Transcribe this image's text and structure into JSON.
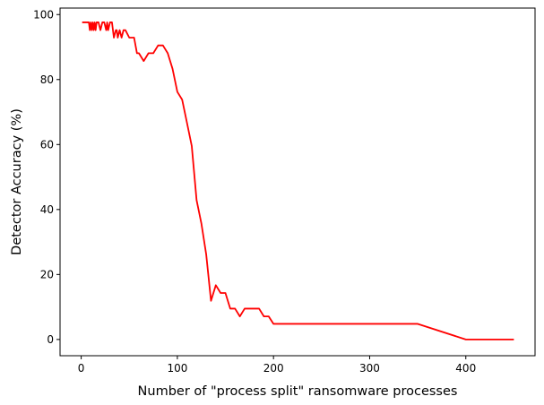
{
  "chart_data": {
    "type": "line",
    "title": "",
    "xlabel": "Number of \"process split\" ransomware processes",
    "ylabel": "Detector Accuracy (%)",
    "xlim": [
      -22,
      472
    ],
    "ylim": [
      -5,
      102
    ],
    "x_ticks": [
      0,
      100,
      200,
      300,
      400
    ],
    "y_ticks": [
      0,
      20,
      40,
      60,
      80,
      100
    ],
    "grid": false,
    "legend": "none",
    "series": [
      {
        "color": "#ff0000",
        "x": [
          1,
          8,
          9,
          10,
          11,
          12,
          13,
          14,
          15,
          16,
          17,
          18,
          20,
          22,
          24,
          26,
          27,
          28,
          30,
          32,
          34,
          36,
          37,
          38,
          40,
          42,
          44,
          46,
          50,
          55,
          58,
          60,
          65,
          70,
          75,
          80,
          85,
          90,
          95,
          100,
          105,
          110,
          115,
          120,
          125,
          130,
          135,
          140,
          145,
          150,
          155,
          160,
          165,
          170,
          175,
          180,
          185,
          190,
          195,
          200,
          205,
          210,
          250,
          300,
          350,
          400,
          450
        ],
        "y": [
          97.6,
          97.6,
          95.2,
          97.6,
          95.2,
          97.6,
          95.2,
          97.6,
          95.2,
          97.6,
          97.6,
          97.6,
          95.2,
          97.6,
          97.6,
          95.2,
          97.6,
          95.2,
          97.6,
          97.6,
          92.9,
          95.2,
          95.2,
          92.9,
          95.2,
          92.9,
          95.2,
          95.2,
          92.9,
          92.9,
          88.1,
          88.1,
          85.7,
          88.1,
          88.1,
          90.5,
          90.5,
          88.1,
          83.3,
          76.2,
          73.8,
          66.7,
          59.5,
          42.9,
          35.7,
          26.2,
          11.9,
          16.7,
          14.3,
          14.3,
          9.5,
          9.5,
          7.1,
          9.5,
          9.5,
          9.5,
          9.5,
          7.1,
          7.1,
          4.8,
          4.8,
          4.8,
          4.8,
          4.8,
          4.8,
          0,
          0
        ]
      }
    ]
  }
}
